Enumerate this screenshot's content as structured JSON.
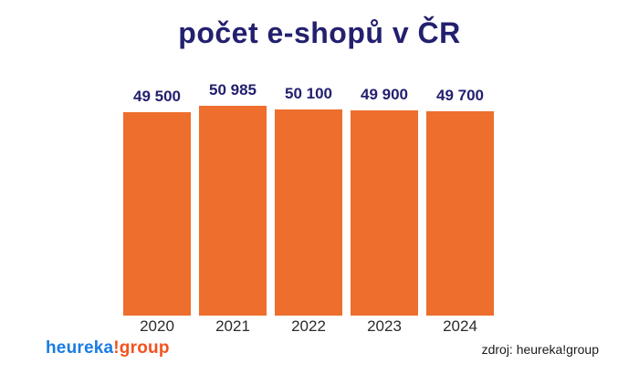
{
  "title": "počet e-shopů v ČR",
  "chart_data": {
    "type": "bar",
    "title": "počet e-shopů v ČR",
    "xlabel": "",
    "ylabel": "",
    "categories": [
      "2020",
      "2021",
      "2022",
      "2023",
      "2024"
    ],
    "values": [
      49500,
      50985,
      50100,
      49900,
      49700
    ],
    "value_labels": [
      "49 500",
      "50 985",
      "50 100",
      "49 900",
      "49 700"
    ],
    "ylim": [
      0,
      50985
    ],
    "grid": false,
    "legend": false,
    "bar_color": "#ed6e2d",
    "value_label_color": "#23206f",
    "category_label_color": "#2b2b2b"
  },
  "footer": {
    "logo_blue_part": "heureka",
    "logo_orange_part": "!group",
    "source": "zdroj: heureka!group"
  },
  "colors": {
    "background": "#ffffff",
    "title": "#23206f",
    "bars": "#ed6e2d",
    "logo_blue": "#1a7ce2",
    "logo_orange": "#f4511e"
  }
}
